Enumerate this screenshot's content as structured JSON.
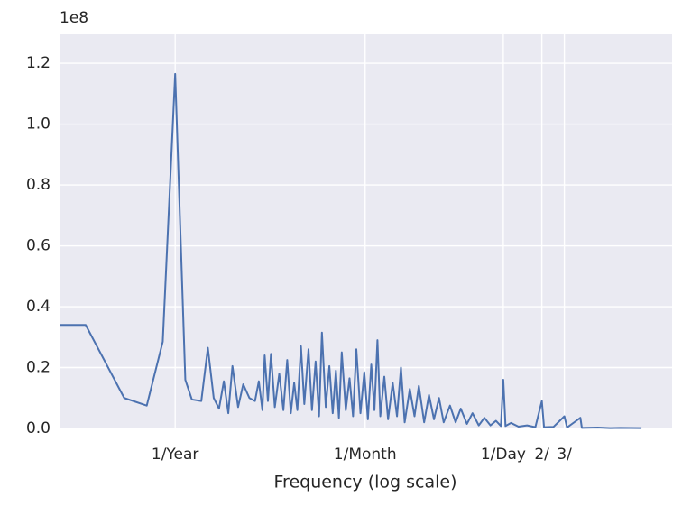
{
  "chart_data": {
    "type": "line",
    "xlabel": "Frequency (log scale)",
    "y_offset_label": "1e8",
    "xscale": "log",
    "grid": true,
    "xlim": [
      0.125,
      7600
    ],
    "ylim": [
      0,
      1.295
    ],
    "xticks": [
      {
        "value": 1,
        "label": "1/Year"
      },
      {
        "value": 30.4375,
        "label": "1/Month"
      },
      {
        "value": 365.25,
        "label": "1/Day"
      },
      {
        "value": 730.5,
        "label": "2/"
      },
      {
        "value": 1095.75,
        "label": "3/"
      }
    ],
    "yticks": [
      {
        "value": 0,
        "label": "0.0"
      },
      0.2,
      0.4,
      0.6,
      0.8,
      {
        "value": 1,
        "label": "1.0"
      },
      1.2
    ],
    "series": [
      {
        "color": "#4c72b0",
        "x": [
          0.125,
          0.2,
          0.4,
          0.6,
          0.8,
          1.0,
          1.2,
          1.35,
          1.6,
          1.8,
          2.0,
          2.2,
          2.4,
          2.6,
          2.8,
          3.1,
          3.4,
          3.8,
          4.2,
          4.5,
          4.8,
          5.0,
          5.3,
          5.6,
          6.0,
          6.5,
          7.0,
          7.5,
          8.0,
          8.5,
          9.0,
          9.6,
          10.2,
          11,
          11.7,
          12.5,
          13.3,
          14,
          15,
          16,
          17,
          18,
          19,
          20,
          21.5,
          23,
          24.5,
          26,
          28,
          30,
          32,
          34,
          36,
          38,
          40,
          43,
          46,
          50,
          54,
          58,
          62,
          68,
          74,
          80,
          88,
          96,
          105,
          115,
          125,
          140,
          155,
          170,
          190,
          210,
          235,
          260,
          290,
          320,
          350,
          365.25,
          380,
          420,
          480,
          560,
          650,
          730.5,
          760,
          900,
          1095.75,
          1150,
          1461,
          1500,
          2000,
          2500,
          3000,
          4383
        ],
        "values": [
          0.34,
          0.34,
          0.1,
          0.075,
          0.285,
          1.165,
          0.16,
          0.095,
          0.09,
          0.265,
          0.1,
          0.065,
          0.155,
          0.05,
          0.205,
          0.07,
          0.145,
          0.1,
          0.09,
          0.155,
          0.06,
          0.24,
          0.09,
          0.245,
          0.07,
          0.18,
          0.06,
          0.225,
          0.05,
          0.15,
          0.06,
          0.27,
          0.08,
          0.26,
          0.06,
          0.22,
          0.04,
          0.315,
          0.07,
          0.205,
          0.05,
          0.19,
          0.035,
          0.25,
          0.06,
          0.165,
          0.04,
          0.26,
          0.05,
          0.185,
          0.03,
          0.21,
          0.06,
          0.29,
          0.04,
          0.17,
          0.03,
          0.15,
          0.04,
          0.2,
          0.02,
          0.13,
          0.04,
          0.14,
          0.02,
          0.11,
          0.03,
          0.1,
          0.02,
          0.075,
          0.02,
          0.065,
          0.015,
          0.05,
          0.01,
          0.035,
          0.01,
          0.025,
          0.008,
          0.16,
          0.008,
          0.018,
          0.006,
          0.01,
          0.004,
          0.09,
          0.004,
          0.005,
          0.04,
          0.003,
          0.035,
          0.002,
          0.003,
          0.001,
          0.002,
          0.001
        ]
      }
    ]
  }
}
